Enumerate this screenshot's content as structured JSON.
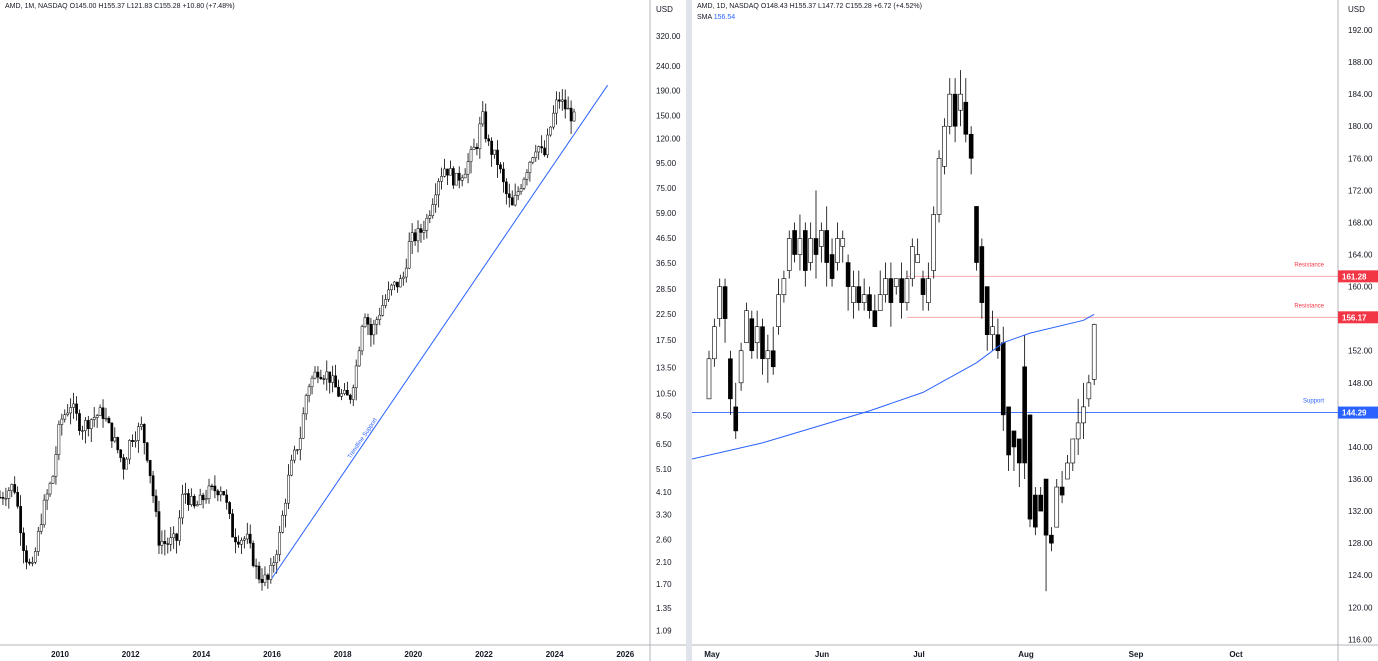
{
  "chart_data": [
    {
      "type": "candlestick",
      "id": "monthly",
      "legend": {
        "symbol": "AMD, 1M, NASDAQ",
        "open": "O145.00",
        "high": "H155.37",
        "low": "L121.83",
        "close": "C155.28",
        "change": "+10.80 (+7.48%)"
      },
      "y_unit": "USD",
      "y_scale": "log",
      "ylim": [
        0.95,
        380
      ],
      "y_ticks": [
        "320.00",
        "240.00",
        "190.00",
        "150.00",
        "120.00",
        "95.00",
        "75.00",
        "59.00",
        "46.50",
        "36.50",
        "28.50",
        "22.50",
        "17.50",
        "13.50",
        "10.50",
        "8.50",
        "6.50",
        "5.10",
        "4.10",
        "3.30",
        "2.60",
        "2.10",
        "1.70",
        "1.35",
        "1.09"
      ],
      "x_ticks": [
        "2010",
        "2012",
        "2014",
        "2016",
        "2018",
        "2020",
        "2022",
        "2024",
        "2026"
      ],
      "xlim": [
        2008.3,
        2026.7
      ],
      "series_path": [
        [
          2008.3,
          3.9
        ],
        [
          2008.7,
          4.4
        ],
        [
          2009.0,
          2.3
        ],
        [
          2009.2,
          1.9
        ],
        [
          2009.5,
          3.4
        ],
        [
          2009.8,
          4.8
        ],
        [
          2010.0,
          8.0
        ],
        [
          2010.3,
          9.5
        ],
        [
          2010.6,
          7.6
        ],
        [
          2010.9,
          8.3
        ],
        [
          2011.2,
          8.8
        ],
        [
          2011.5,
          6.9
        ],
        [
          2011.8,
          5.3
        ],
        [
          2012.0,
          6.9
        ],
        [
          2012.3,
          7.6
        ],
        [
          2012.5,
          5.6
        ],
        [
          2012.8,
          2.6
        ],
        [
          2013.0,
          2.5
        ],
        [
          2013.3,
          2.6
        ],
        [
          2013.5,
          4.2
        ],
        [
          2013.8,
          3.5
        ],
        [
          2014.2,
          4.1
        ],
        [
          2014.6,
          4.3
        ],
        [
          2014.9,
          2.7
        ],
        [
          2015.3,
          2.6
        ],
        [
          2015.6,
          1.85
        ],
        [
          2015.9,
          1.75
        ],
        [
          2016.2,
          2.6
        ],
        [
          2016.5,
          5.0
        ],
        [
          2016.8,
          7.0
        ],
        [
          2017.0,
          11.2
        ],
        [
          2017.3,
          13.2
        ],
        [
          2017.6,
          12.5
        ],
        [
          2017.9,
          10.4
        ],
        [
          2018.2,
          10.0
        ],
        [
          2018.4,
          14.0
        ],
        [
          2018.6,
          24.0
        ],
        [
          2018.8,
          18.5
        ],
        [
          2019.1,
          24.0
        ],
        [
          2019.4,
          29.0
        ],
        [
          2019.7,
          31.0
        ],
        [
          2019.9,
          45.0
        ],
        [
          2020.2,
          49.0
        ],
        [
          2020.4,
          56.0
        ],
        [
          2020.7,
          82.0
        ],
        [
          2020.9,
          92.0
        ],
        [
          2021.2,
          80.0
        ],
        [
          2021.5,
          92.0
        ],
        [
          2021.8,
          115.0
        ],
        [
          2021.95,
          150.0
        ],
        [
          2022.1,
          115.0
        ],
        [
          2022.4,
          95.0
        ],
        [
          2022.6,
          72.0
        ],
        [
          2022.8,
          62.0
        ],
        [
          2023.0,
          75.0
        ],
        [
          2023.3,
          98.0
        ],
        [
          2023.5,
          115.0
        ],
        [
          2023.7,
          100.0
        ],
        [
          2023.9,
          138.0
        ],
        [
          2024.1,
          178.0
        ],
        [
          2024.25,
          165.0
        ],
        [
          2024.4,
          155.0
        ],
        [
          2024.55,
          145.0
        ],
        [
          2024.62,
          155.28
        ]
      ],
      "trendline": {
        "label": "Trendline Support",
        "from": [
          2016.0,
          1.8
        ],
        "to": [
          2025.5,
          200.0
        ]
      }
    },
    {
      "type": "candlestick",
      "id": "daily",
      "legend": {
        "symbol": "AMD, 1D, NASDAQ",
        "open": "O148.43",
        "high": "H155.37",
        "low": "L147.72",
        "close": "C155.28",
        "change": "+6.72 (+4.52%)"
      },
      "indicator": {
        "name": "SMA",
        "value": "156.54"
      },
      "y_unit": "USD",
      "ylim": [
        115.3,
        193.5
      ],
      "y_ticks": [
        "192.00",
        "188.00",
        "184.00",
        "180.00",
        "176.00",
        "172.00",
        "168.00",
        "164.00",
        "160.00",
        "156.00",
        "152.00",
        "148.00",
        "144.00",
        "140.00",
        "136.00",
        "132.00",
        "128.00",
        "124.00",
        "120.00",
        "116.00"
      ],
      "x_ticks": [
        "May",
        "Jun",
        "Jul",
        "Aug",
        "Sep",
        "Oct"
      ],
      "levels": [
        {
          "label": "Resistance",
          "value": 161.28,
          "badge": "161.28",
          "color": "#f23645"
        },
        {
          "label": "Resistance",
          "value": 156.17,
          "badge": "156.17",
          "color": "#f23645"
        },
        {
          "label": "Support",
          "value": 144.29,
          "badge": "144.29",
          "color": "#2962ff"
        }
      ],
      "candles": [
        [
          146,
          151,
          146,
          152
        ],
        [
          151,
          155,
          150,
          156
        ],
        [
          156,
          160,
          155,
          161
        ],
        [
          160,
          156,
          153,
          161
        ],
        [
          151,
          146,
          144,
          152
        ],
        [
          145,
          142,
          141,
          148
        ],
        [
          148,
          152,
          147,
          153
        ],
        [
          153,
          157,
          153,
          158
        ],
        [
          156,
          152,
          151,
          157
        ],
        [
          153,
          155,
          151,
          157
        ],
        [
          155,
          151,
          149,
          156
        ],
        [
          151,
          152,
          148,
          154
        ],
        [
          152,
          150,
          149,
          155
        ],
        [
          155,
          159,
          154,
          161
        ],
        [
          159,
          161,
          158,
          162
        ],
        [
          162,
          166,
          161,
          167
        ],
        [
          167,
          164,
          163,
          168
        ],
        [
          164,
          166,
          162,
          169
        ],
        [
          167,
          162,
          160,
          168
        ],
        [
          163,
          166,
          162,
          168
        ],
        [
          166,
          164,
          161,
          172
        ],
        [
          165,
          167,
          163,
          168
        ],
        [
          167,
          163,
          160,
          170
        ],
        [
          164,
          161,
          160,
          166
        ],
        [
          163,
          166,
          162,
          168
        ],
        [
          165,
          166,
          163,
          167
        ],
        [
          163,
          160,
          157,
          164
        ],
        [
          158,
          160,
          156,
          162
        ],
        [
          160,
          158,
          157,
          162
        ],
        [
          158,
          159,
          157,
          161
        ],
        [
          159,
          157,
          156,
          160
        ],
        [
          157,
          155,
          155,
          159
        ],
        [
          157,
          159,
          157,
          162
        ],
        [
          159,
          161,
          158,
          163
        ],
        [
          161,
          158,
          155,
          163
        ],
        [
          160,
          161,
          159,
          161
        ],
        [
          161,
          158,
          156,
          163
        ],
        [
          158,
          161,
          157,
          162
        ],
        [
          161,
          165,
          160,
          166
        ],
        [
          163,
          164,
          163,
          166
        ],
        [
          161,
          159,
          157,
          162
        ],
        [
          158,
          161,
          157,
          163
        ],
        [
          162,
          169,
          161,
          170
        ],
        [
          169,
          176,
          168,
          177
        ],
        [
          175,
          180,
          174,
          181
        ],
        [
          180,
          184,
          179,
          186
        ],
        [
          184,
          180,
          178,
          186
        ],
        [
          182,
          184,
          180,
          187
        ],
        [
          183,
          179,
          178,
          186
        ],
        [
          179,
          176,
          174,
          180
        ],
        [
          170,
          163,
          162,
          170
        ],
        [
          165,
          158,
          156,
          166
        ],
        [
          160,
          154,
          152,
          160
        ],
        [
          154,
          155,
          152,
          157
        ],
        [
          154,
          152,
          151,
          156
        ],
        [
          153,
          144,
          142,
          155
        ],
        [
          145,
          139,
          137,
          145
        ],
        [
          142,
          140,
          137,
          142
        ],
        [
          141,
          138,
          135,
          141
        ],
        [
          150,
          138,
          136,
          154
        ],
        [
          144,
          131,
          130,
          144
        ],
        [
          134,
          130,
          129,
          135
        ],
        [
          134,
          132,
          132,
          135
        ],
        [
          136,
          129,
          122,
          136
        ],
        [
          129,
          128,
          127,
          130
        ],
        [
          130,
          135,
          130,
          136
        ],
        [
          135,
          134,
          133,
          137
        ],
        [
          136,
          138,
          136,
          139
        ],
        [
          138,
          141,
          137,
          141
        ],
        [
          141,
          143,
          139,
          146
        ],
        [
          143,
          145,
          141,
          148
        ],
        [
          146,
          148,
          145,
          149
        ],
        [
          148.43,
          155.28,
          147.72,
          155.37
        ]
      ],
      "sma_path": [
        [
          0,
          138.5
        ],
        [
          10,
          140.5
        ],
        [
          20,
          142.5
        ],
        [
          30,
          144.5
        ],
        [
          40,
          146.8
        ],
        [
          50,
          150.5
        ],
        [
          55,
          153
        ],
        [
          60,
          154.2
        ],
        [
          70,
          155.8
        ],
        [
          72,
          156.54
        ]
      ]
    }
  ]
}
